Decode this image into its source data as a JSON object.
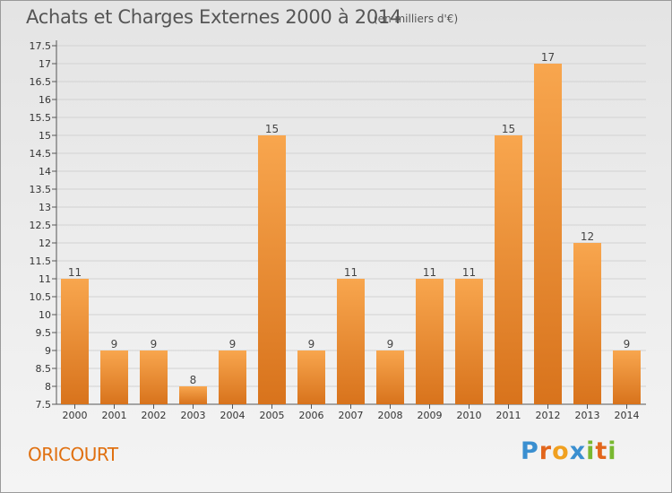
{
  "title": "Achats et Charges Externes 2000 à 2014",
  "unit_note": "(en milliers d'€)",
  "commune": "ORICOURT",
  "logo": {
    "text": "Proxiti",
    "letters": [
      "P",
      "r",
      "o",
      "x",
      "i",
      "t",
      "i"
    ],
    "colors": [
      "#3a8fd0",
      "#e2661c",
      "#f0a020",
      "#3a8fd0",
      "#78b830",
      "#e2661c",
      "#78b830"
    ]
  },
  "colors": {
    "bar_top": "#f8a64e",
    "bar_bottom": "#d8731c",
    "title": "#555555",
    "commune": "#e07010"
  },
  "chart_data": {
    "type": "bar",
    "title": "Achats et Charges Externes 2000 à 2014",
    "categories": [
      "2000",
      "2001",
      "2002",
      "2003",
      "2004",
      "2005",
      "2006",
      "2007",
      "2008",
      "2009",
      "2010",
      "2011",
      "2012",
      "2013",
      "2014"
    ],
    "values": [
      11,
      9,
      9,
      8,
      9,
      15,
      9,
      11,
      9,
      11,
      11,
      15,
      17,
      12,
      9
    ],
    "data_labels": [
      "11",
      "9",
      "9",
      "8",
      "9",
      "15",
      "9",
      "11",
      "9",
      "11",
      "11",
      "15",
      "17",
      "12",
      "9"
    ],
    "ylim": [
      7.5,
      17.5
    ],
    "yticks": [
      "7.5",
      "8",
      "8.5",
      "9",
      "9.5",
      "10",
      "10.5",
      "11",
      "11.5",
      "12",
      "12.5",
      "13",
      "13.5",
      "14",
      "14.5",
      "15",
      "15.5",
      "16",
      "16.5",
      "17",
      "17.5"
    ],
    "grid": true,
    "xlabel": "",
    "ylabel": ""
  }
}
